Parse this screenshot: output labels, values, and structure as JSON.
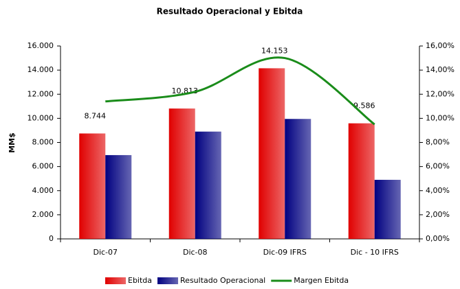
{
  "chart_data": {
    "type": "bar",
    "title": "Resultado Operacional y Ebitda",
    "y_label": "MM$",
    "categories": [
      "Dic-07",
      "Dic-08",
      "Dic-09 IFRS",
      "Dic - 10 IFRS"
    ],
    "series": [
      {
        "name": "Ebitda",
        "color": "#e00000",
        "values": [
          8744,
          10813,
          14153,
          9586
        ],
        "value_labels": [
          "8.744",
          "10.813",
          "14.153",
          "9.586"
        ]
      },
      {
        "name": "Resultado Operacional",
        "color": "#000080",
        "values": [
          6950,
          8900,
          9950,
          4900
        ]
      },
      {
        "name": "Margen Ebitda",
        "color": "#1a8c1a",
        "type": "line",
        "axis": "y2",
        "values": [
          11.4,
          12.2,
          15.0,
          9.5
        ]
      }
    ],
    "ylim": [
      0,
      16000
    ],
    "yticks": [
      0,
      {
        "value": 2000,
        "label": "2.000"
      },
      {
        "value": 4000,
        "label": "4.000"
      },
      {
        "value": 6000,
        "label": "6.000"
      },
      {
        "value": 8000,
        "label": "8.000"
      },
      {
        "value": 10000,
        "label": "10.000"
      },
      {
        "value": 12000,
        "label": "12.000"
      },
      {
        "value": 14000,
        "label": "14.000"
      },
      {
        "value": 16000,
        "label": "16.000"
      }
    ],
    "y2lim": [
      0,
      16
    ],
    "y2ticks": [
      {
        "value": 0,
        "label": "0,00%"
      },
      {
        "value": 2,
        "label": "2,00%"
      },
      {
        "value": 4,
        "label": "4,00%"
      },
      {
        "value": 6,
        "label": "6,00%"
      },
      {
        "value": 8,
        "label": "8,00%"
      },
      {
        "value": 10,
        "label": "10,00%"
      },
      {
        "value": 12,
        "label": "12,00%"
      },
      {
        "value": 14,
        "label": "14,00%"
      },
      {
        "value": 16,
        "label": "16,00%"
      }
    ],
    "legend": "bottom"
  }
}
